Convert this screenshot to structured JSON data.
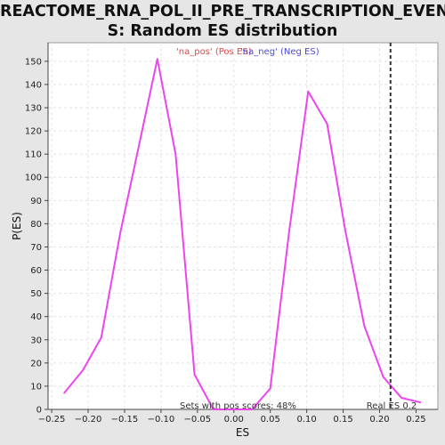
{
  "chart_data": {
    "type": "line",
    "title_lines": [
      "REACTOME_RNA_POL_II_PRE_TRANSCRIPTION_EVENT",
      "S: Random ES distribution"
    ],
    "xlabel": "ES",
    "ylabel": "P(ES)",
    "xlim": [
      -0.255,
      0.28
    ],
    "ylim": [
      0,
      158
    ],
    "x_ticks": [
      -0.25,
      -0.2,
      -0.15,
      -0.1,
      -0.05,
      0.0,
      0.05,
      0.1,
      0.15,
      0.2,
      0.25
    ],
    "x_tick_labels": [
      "−0.25",
      "−0.20",
      "−0.15",
      "−0.10",
      "−0.05",
      "0.00",
      "0.05",
      "0.10",
      "0.15",
      "0.20",
      "0.25"
    ],
    "y_ticks": [
      0,
      10,
      20,
      30,
      40,
      50,
      60,
      70,
      80,
      90,
      100,
      110,
      120,
      130,
      140,
      150
    ],
    "grid": true,
    "legend": {
      "position": "top-center",
      "pos_label": "'na_pos' (Pos ES)",
      "neg_label": "'na_neg' (Neg ES)"
    },
    "series": [
      {
        "color": "#ee44ee",
        "x": [
          -0.233,
          -0.207,
          -0.182,
          -0.156,
          -0.13,
          -0.105,
          -0.08,
          -0.054,
          -0.028,
          0.0,
          0.025,
          0.05,
          0.076,
          0.102,
          0.128,
          0.153,
          0.179,
          0.205,
          0.23,
          0.256
        ],
        "y": [
          7,
          17,
          31,
          76,
          114,
          151,
          110,
          15,
          0,
          0,
          0,
          9,
          77,
          137,
          123,
          77,
          36,
          14,
          5,
          3
        ]
      }
    ],
    "real_es": {
      "x": 0.215,
      "label": "Real ES 0.2"
    },
    "bottom_annotation": "Sets with pos scores: 48%"
  },
  "colors": {
    "background": "#e6e6e6",
    "plot_area": "#ffffff",
    "line": "#ee44ee",
    "grid": "#e2e2e2",
    "real_es_line": "#333333"
  }
}
